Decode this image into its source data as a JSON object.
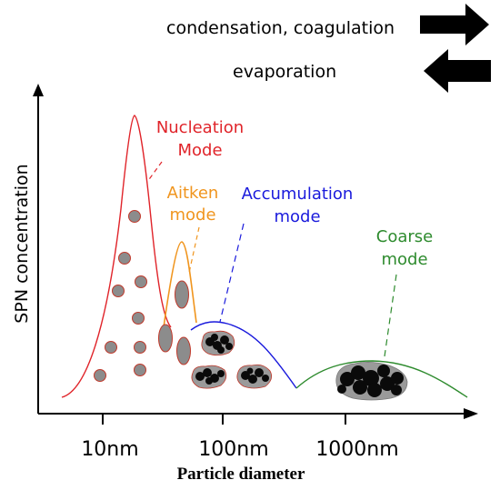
{
  "legend": {
    "condensation_label": "condensation, coagulation",
    "evaporation_label": "evaporation"
  },
  "axes": {
    "y_label": "SPN concentration",
    "x_label": "Particle diameter",
    "x_ticks": [
      "10nm",
      "100nm",
      "1000nm"
    ]
  },
  "modes": {
    "nucleation": {
      "line1": "Nucleation",
      "line2": "Mode",
      "color": "#e0242a"
    },
    "aitken": {
      "line1": "Aitken",
      "line2": "mode",
      "color": "#f0951e"
    },
    "accumulation": {
      "line1": "Accumulation",
      "line2": "mode",
      "color": "#1a1adc"
    },
    "coarse": {
      "line1": "Coarse",
      "line2": "mode",
      "color": "#2e8b2e"
    }
  },
  "colors": {
    "particle_fill": "#8c8c8c",
    "particle_stroke": "#c0392b",
    "soot": "#0a0a0a",
    "axis": "#000000"
  }
}
